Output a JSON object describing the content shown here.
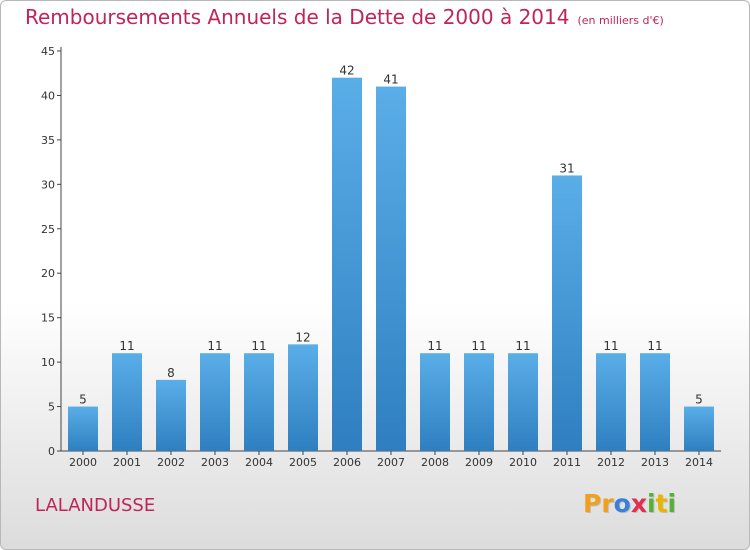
{
  "title": "Remboursements Annuels de la Dette de 2000 à 2014",
  "subtitle": "(en milliers d'€)",
  "commune": "LALANDUSSE",
  "logo": {
    "letters": [
      "P",
      "r",
      "o",
      "x",
      "i",
      "t",
      "i"
    ],
    "colors": [
      "#f0a020",
      "#f0a020",
      "#3a7fd8",
      "#e03050",
      "#56b13a",
      "#e8b400",
      "#56b13a"
    ]
  },
  "colors": {
    "bar": "#4a9ee0",
    "title": "#c0245a"
  },
  "chart_data": {
    "type": "bar",
    "categories": [
      "2000",
      "2001",
      "2002",
      "2003",
      "2004",
      "2005",
      "2006",
      "2007",
      "2008",
      "2009",
      "2010",
      "2011",
      "2012",
      "2013",
      "2014"
    ],
    "values": [
      5,
      11,
      8,
      11,
      11,
      12,
      42,
      41,
      11,
      11,
      11,
      31,
      11,
      11,
      5
    ],
    "title": "Remboursements Annuels de la Dette de 2000 à 2014",
    "subtitle": "(en milliers d'€)",
    "xlabel": "",
    "ylabel": "",
    "ylim": [
      0,
      45
    ],
    "yticks": [
      0,
      5,
      10,
      15,
      20,
      25,
      30,
      35,
      40,
      45
    ],
    "grid": false,
    "legend": "none"
  }
}
